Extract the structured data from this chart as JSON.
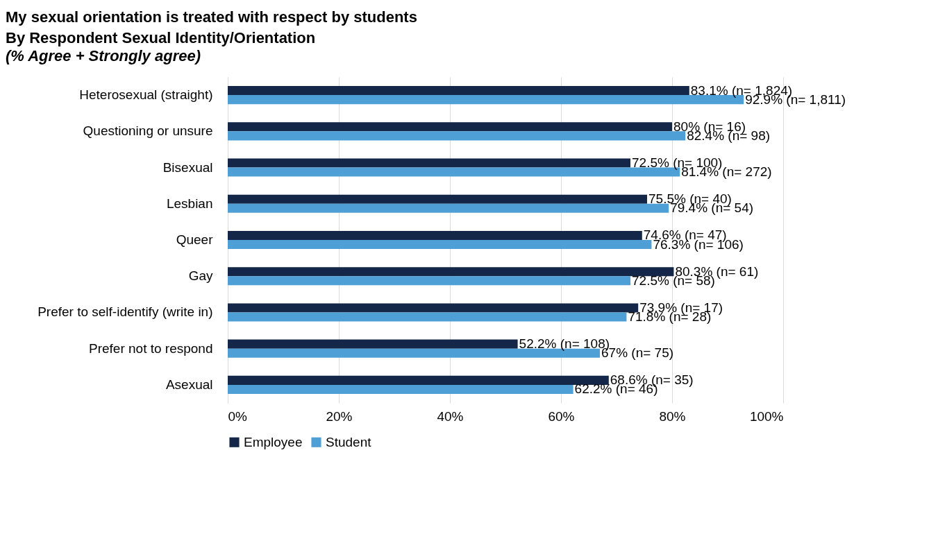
{
  "chart_data": {
    "type": "bar",
    "orientation": "horizontal",
    "title": "My sexual orientation is treated with respect by students",
    "subtitle": "By Respondent Sexual Identity/Orientation",
    "annotations": [
      "(% Agree + Strongly agree)"
    ],
    "categories": [
      "Heterosexual (straight)",
      "Questioning or unsure",
      "Bisexual",
      "Lesbian",
      "Queer",
      "Gay",
      "Prefer to self-identify (write in)",
      "Prefer not to respond",
      "Asexual"
    ],
    "series": [
      {
        "name": "Employee",
        "color": "#142748",
        "values": [
          83.1,
          80,
          72.5,
          75.5,
          74.6,
          80.3,
          73.9,
          52.2,
          68.6
        ],
        "value_labels": [
          "83.1% (n= 1,824)",
          "80% (n= 16)",
          "72.5% (n= 100)",
          "75.5% (n= 40)",
          "74.6% (n= 47)",
          "80.3% (n= 61)",
          "73.9% (n= 17)",
          "52.2% (n= 108)",
          "68.6% (n= 35)"
        ]
      },
      {
        "name": "Student",
        "color": "#4e9fd6",
        "values": [
          92.9,
          82.4,
          81.4,
          79.4,
          76.3,
          72.5,
          71.8,
          67,
          62.2
        ],
        "value_labels": [
          "92.9% (n= 1,811)",
          "82.4% (n= 98)",
          "81.4% (n= 272)",
          "79.4% (n= 54)",
          "76.3% (n= 106)",
          "72.5% (n= 58)",
          "71.8% (n= 28)",
          "67% (n= 75)",
          "62.2% (n= 46)"
        ]
      }
    ],
    "xlim": [
      0,
      100
    ],
    "xticks": [
      {
        "value": 0,
        "label": "0%"
      },
      {
        "value": 20,
        "label": "20%"
      },
      {
        "value": 40,
        "label": "40%"
      },
      {
        "value": 60,
        "label": "60%"
      },
      {
        "value": 80,
        "label": "80%"
      },
      {
        "value": 100,
        "label": "100%"
      }
    ],
    "grid": "x",
    "legend": "bottom"
  }
}
